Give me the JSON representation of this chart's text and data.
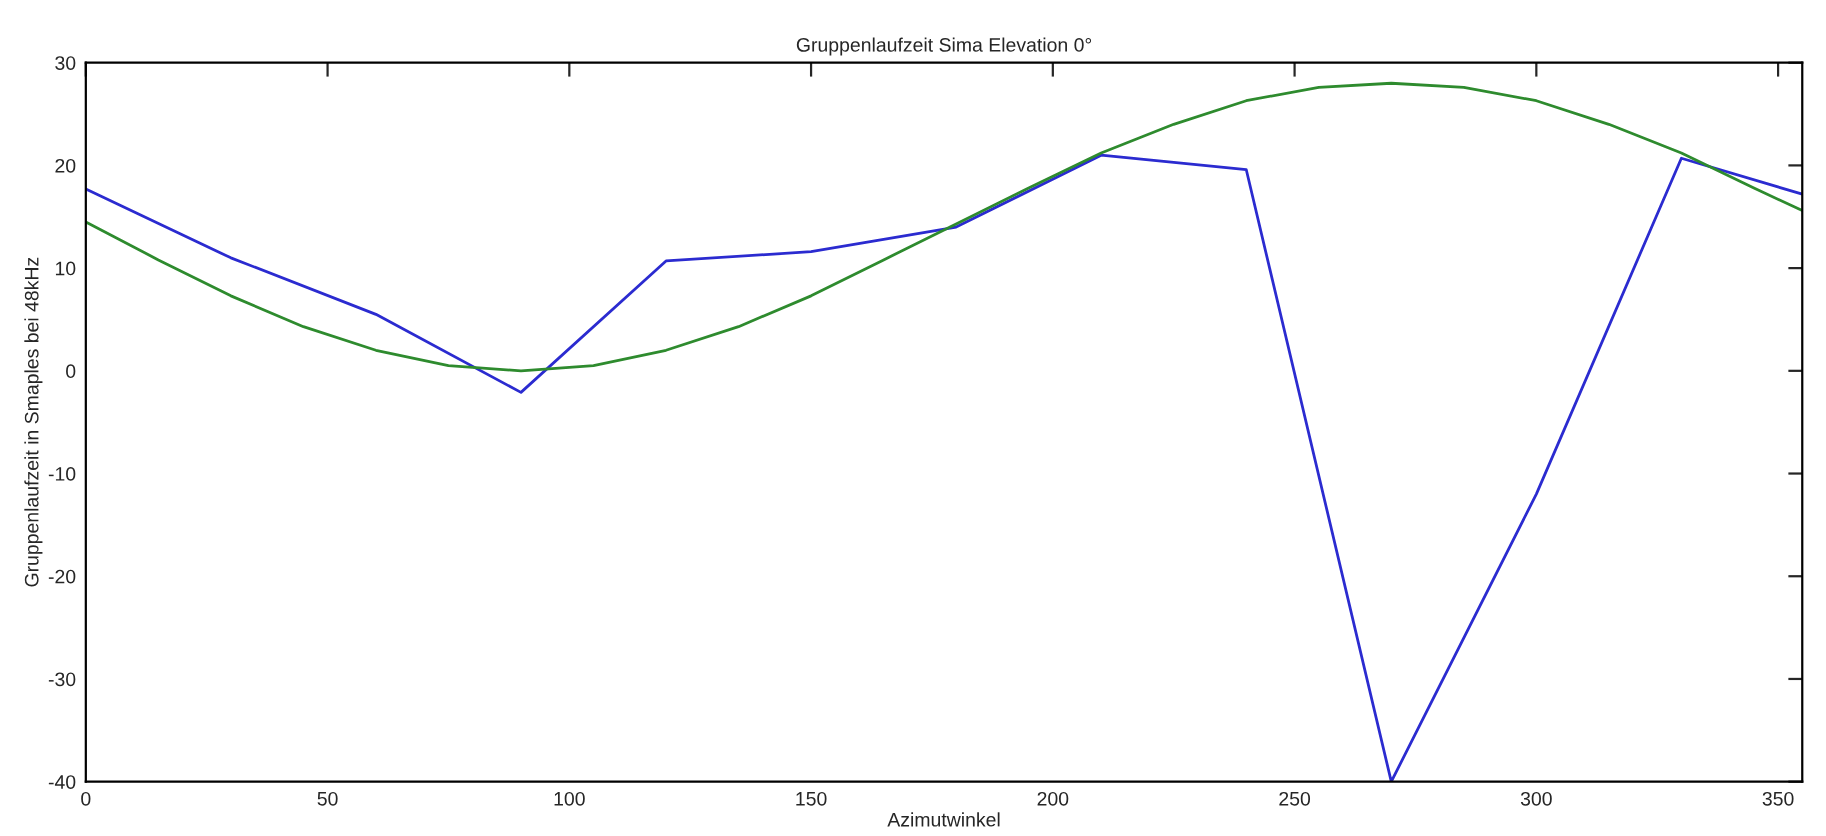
{
  "chart_data": {
    "type": "line",
    "title": "Gruppenlaufzeit Sima Elevation 0°",
    "xlabel": "Azimutwinkel",
    "ylabel": "Gruppenlaufzeit in Smaples bei 48kHz",
    "xlim": [
      0,
      355
    ],
    "xticks": [
      0,
      50,
      100,
      150,
      200,
      250,
      300,
      350
    ],
    "ylim": [
      -40,
      30
    ],
    "yticks": [
      -40,
      -30,
      -20,
      -10,
      0,
      10,
      20,
      30
    ],
    "grid": false,
    "series": [
      {
        "color": "#2b2bd0",
        "x": [
          0,
          30,
          60,
          90,
          120,
          150,
          180,
          210,
          240,
          270,
          300,
          330,
          355
        ],
        "values": [
          17.7,
          11,
          5.5,
          -2.1,
          10.7,
          11.6,
          14,
          21,
          19.6,
          -40,
          -12,
          20.7,
          17.2
        ]
      },
      {
        "color": "#2e8b2e",
        "x": [
          0,
          15,
          30,
          45,
          60,
          75,
          90,
          105,
          120,
          135,
          150,
          165,
          180,
          195,
          210,
          225,
          240,
          255,
          270,
          285,
          300,
          315,
          330,
          345,
          355
        ],
        "values": [
          14.5,
          10.8,
          7.3,
          4.3,
          2.0,
          0.5,
          0,
          0.5,
          2,
          4.3,
          7.3,
          10.8,
          14.3,
          17.8,
          21.2,
          24,
          26.3,
          27.6,
          28,
          27.6,
          26.3,
          24,
          21.2,
          17.8,
          15.6
        ]
      }
    ]
  }
}
